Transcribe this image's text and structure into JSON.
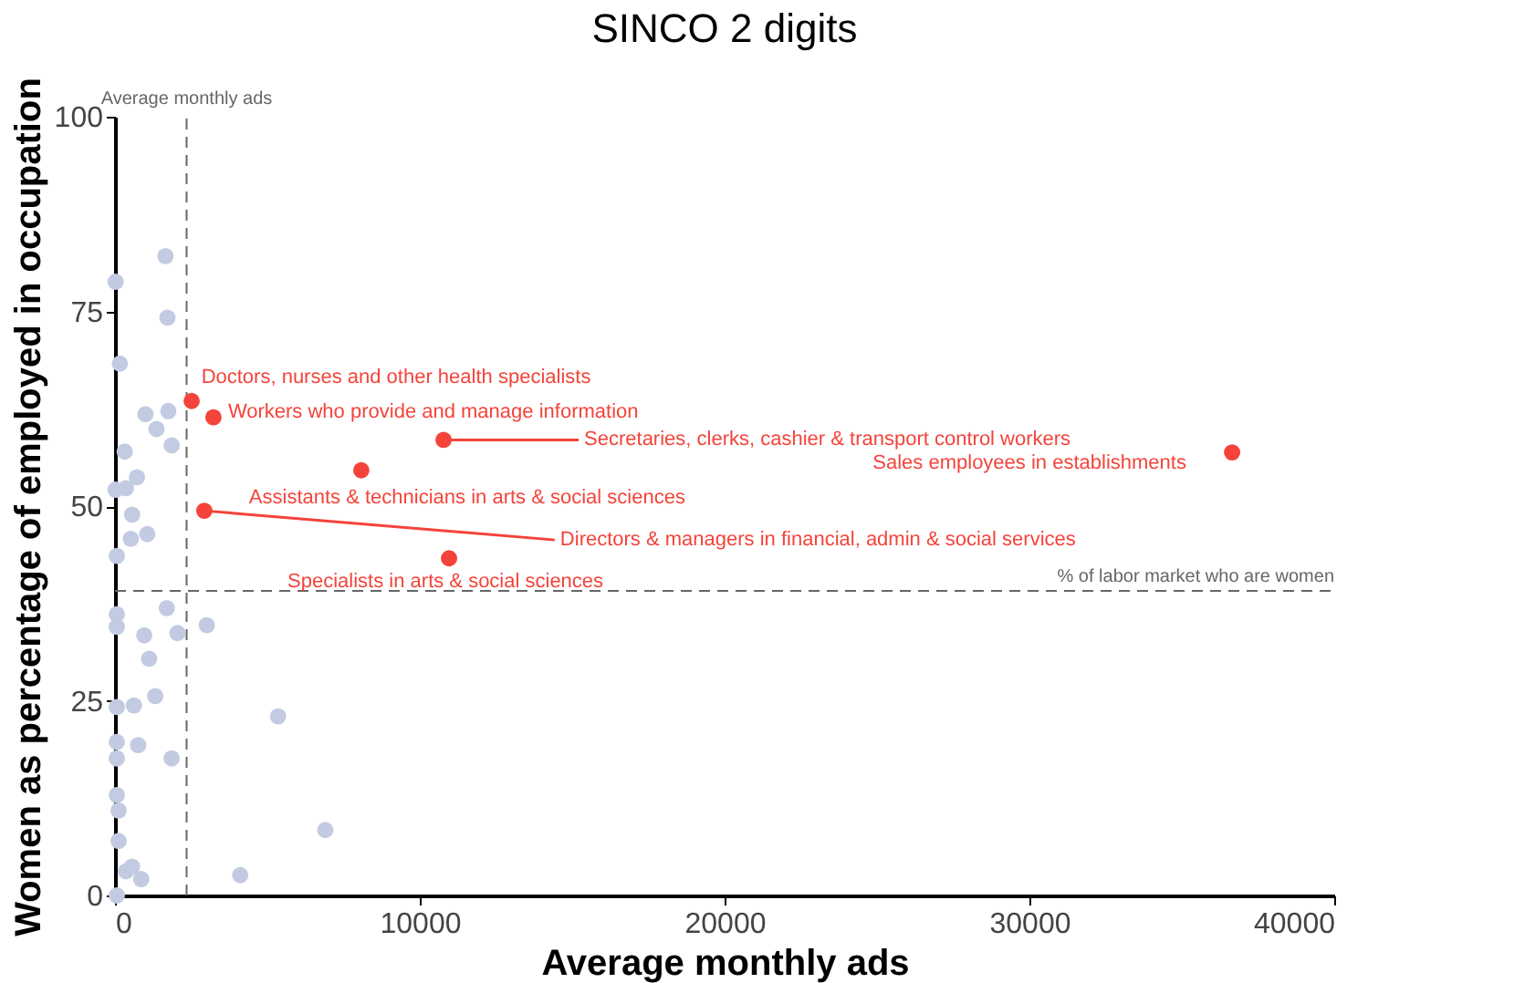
{
  "chart_data": {
    "type": "scatter",
    "title": "SINCO 2 digits",
    "xlabel": "Average monthly ads",
    "ylabel": "Women as percentage of employed in occupation",
    "xlim": [
      0,
      40000
    ],
    "ylim": [
      0,
      100
    ],
    "xticks": [
      0,
      10000,
      20000,
      30000,
      40000
    ],
    "yticks": [
      0,
      25,
      50,
      75,
      100
    ],
    "grid": false,
    "marker": "circle",
    "series": [
      {
        "color": "#c3cbe2",
        "x": [
          1657,
          20,
          1720,
          160,
          1000,
          1750,
          1360,
          1860,
          320,
          720,
          20,
          360,
          560,
          1060,
          520,
          60,
          60,
          60,
          1700,
          960,
          2050,
          3010,
          1120,
          1320,
          620,
          60,
          5350,
          60,
          760,
          60,
          1860,
          60,
          120,
          120,
          6900,
          560,
          360,
          860,
          4110,
          60
        ],
        "values": [
          82.1,
          78.8,
          74.2,
          68.3,
          61.8,
          62.2,
          59.9,
          57.8,
          57.0,
          53.7,
          52.1,
          52.3,
          48.9,
          46.4,
          45.8,
          43.6,
          36.1,
          34.5,
          36.9,
          33.4,
          33.7,
          34.7,
          30.4,
          25.6,
          24.4,
          24.2,
          23.0,
          19.7,
          19.3,
          17.6,
          17.6,
          12.9,
          10.9,
          7.0,
          8.4,
          3.7,
          3.1,
          2.1,
          2.6,
          0
        ]
      },
      {
        "color": "#f4433a",
        "x": [
          2515,
          3230,
          10780,
          36650,
          8080,
          2930,
          10960
        ],
        "values": [
          63.5,
          61.4,
          58.5,
          56.9,
          54.6,
          49.4,
          43.3
        ]
      }
    ],
    "annotations": [
      {
        "text": "Doctors, nurses and other health specialists",
        "x": 2515,
        "y": 63.5
      },
      {
        "text": "Workers who provide and manage information",
        "x": 3230,
        "y": 61.4
      },
      {
        "text": "Secretaries, clerks, cashier & transport control workers",
        "x": 10780,
        "y": 58.5
      },
      {
        "text": "Sales employees in establishments",
        "x": 36650,
        "y": 56.9
      },
      {
        "text": "Assistants & technicians in arts & social sciences",
        "x": 8080,
        "y": 54.6
      },
      {
        "text": "Directors & managers in financial, admin & social services",
        "x": 2930,
        "y": 49.4
      },
      {
        "text": "Specialists in arts & social sciences",
        "x": 10960,
        "y": 43.3
      }
    ],
    "ref_lines": [
      {
        "axis": "x",
        "value": 2350,
        "label": "Average monthly ads",
        "color": "#666666",
        "line_style": "dashed"
      },
      {
        "axis": "y",
        "value": 39.1,
        "label": "% of labor market who are women",
        "color": "#666666",
        "line_style": "dashed"
      }
    ]
  }
}
